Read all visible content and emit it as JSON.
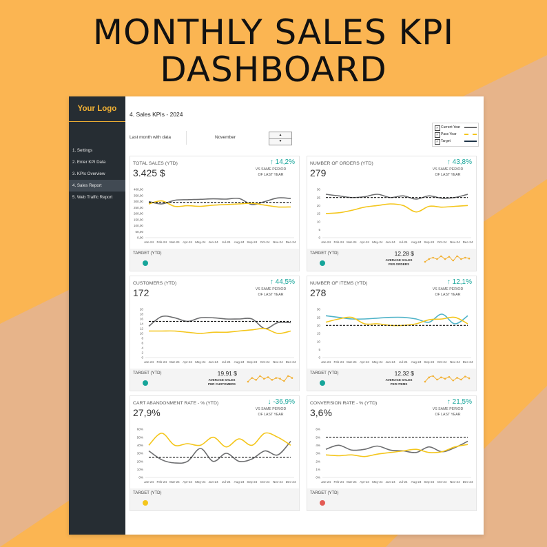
{
  "headline": [
    "MONTHLY SALES KPI",
    "DASHBOARD"
  ],
  "logo": "Your Logo",
  "nav": [
    {
      "label": "1. Settings",
      "active": false
    },
    {
      "label": "2. Enter KPI Data",
      "active": false
    },
    {
      "label": "3. KPIs Overview",
      "active": false
    },
    {
      "label": "4. Sales Report",
      "active": true
    },
    {
      "label": "5. Web Traffic Report",
      "active": false
    }
  ],
  "page_title": "4. Sales KPIs - 2024",
  "last_month_label": "Last month with data",
  "month": "November",
  "spinner": {
    "up": "▲",
    "down": "▼"
  },
  "legend": [
    {
      "label": "Current Year",
      "checked": true,
      "color": "#6d6e70",
      "style": "solid"
    },
    {
      "label": "Pass Year",
      "checked": true,
      "color": "#f4c61c",
      "style": "dashed"
    },
    {
      "label": "Target",
      "checked": true,
      "color": "#1f3549",
      "style": "solid"
    }
  ],
  "colors": {
    "current": "#6d6e70",
    "past": "#f4c61c",
    "target": "#111111",
    "items_current": "#4fb3c8",
    "change_color": "#16a59a",
    "sidebar": "#262d33",
    "background": "#fbb552"
  },
  "months": [
    "Jan-24",
    "Feb-24",
    "Mar-24",
    "Apr-24",
    "May-24",
    "Jun-24",
    "Jul-24",
    "Aug-24",
    "Sep-24",
    "Oct-24",
    "Nov-24",
    "Dec-24"
  ],
  "cards": [
    {
      "title": "TOTAL SALES (YTD)",
      "value": "3.425 $",
      "arrow": "↑",
      "change": "14,2%",
      "cmp": [
        "VS SAME PERIOD",
        "OF LAST YEAR"
      ],
      "target_label": "TARGET (YTD)",
      "dot_color": "#16a59a",
      "avg_value": "",
      "avg_label": [],
      "chart_data": {
        "type": "line",
        "ylim": [
          0,
          400
        ],
        "yticks": [
          "0,00",
          "50,00",
          "100,00",
          "150,00",
          "200,00",
          "250,00",
          "300,00",
          "350,00",
          "400,00"
        ],
        "series": [
          {
            "values": [
              300,
              280,
              310,
              315,
              318,
              322,
              320,
              325,
              275,
              300,
              330,
              325
            ],
            "color": "#6d6e70",
            "width": 1.6
          },
          {
            "values": [
              280,
              305,
              260,
              265,
              260,
              270,
              275,
              280,
              285,
              270,
              255,
              255
            ],
            "color": "#f4c61c",
            "width": 1.6
          },
          {
            "values": [
              292,
              292,
              292,
              292,
              292,
              292,
              292,
              292,
              292,
              292,
              292,
              292
            ],
            "color": "#111111",
            "width": 1.2,
            "dash": "3,2"
          }
        ]
      },
      "sparkline": []
    },
    {
      "title": "NUMBER OF ORDERS (YTD)",
      "value": "279",
      "arrow": "↑",
      "change": "43,8%",
      "cmp": [
        "VS SAME PERIOD",
        "OF LAST YEAR"
      ],
      "target_label": "TARGET (YTD)",
      "dot_color": "#16a59a",
      "avg_value": "12,28 $",
      "avg_label": [
        "AVERAGE SALES",
        "PER ORDERS"
      ],
      "chart_data": {
        "type": "line",
        "ylim": [
          0,
          30
        ],
        "yticks": [
          "0",
          "5",
          "10",
          "15",
          "20",
          "25",
          "30"
        ],
        "series": [
          {
            "values": [
              27,
              26,
              25,
              25.5,
              27,
              25,
              26,
              24,
              26,
              24.5,
              25,
              27
            ],
            "color": "#6d6e70",
            "width": 1.6
          },
          {
            "values": [
              15,
              15.5,
              17,
              19,
              20,
              21,
              20,
              16,
              19.5,
              19,
              19.5,
              20
            ],
            "color": "#f4c61c",
            "width": 1.6
          },
          {
            "values": [
              25,
              25,
              25,
              25,
              25,
              25,
              25,
              25,
              25,
              25,
              25,
              25
            ],
            "color": "#111111",
            "width": 1.2,
            "dash": "3,2"
          }
        ]
      },
      "sparkline": [
        11,
        12,
        12.5,
        12,
        13,
        12,
        12.8,
        11.5,
        13,
        12,
        12.5,
        12.2
      ]
    },
    {
      "title": "CUSTOMERS (YTD)",
      "value": "172",
      "arrow": "↑",
      "change": "44,5%",
      "cmp": [
        "VS SAME PERIOD",
        "OF LAST YEAR"
      ],
      "target_label": "TARGET (YTD)",
      "dot_color": "#16a59a",
      "avg_value": "19,91 $",
      "avg_label": [
        "AVERAGE SALES",
        "PER CUSTOMERS"
      ],
      "chart_data": {
        "type": "line",
        "ylim": [
          0,
          20
        ],
        "yticks": [
          "0",
          "2",
          "4",
          "6",
          "8",
          "10",
          "12",
          "14",
          "16",
          "18",
          "20"
        ],
        "series": [
          {
            "values": [
              13,
              17,
              16.5,
              15,
              16.5,
              16.5,
              16,
              16,
              16,
              12,
              14.5,
              14.5
            ],
            "color": "#6d6e70",
            "width": 1.6
          },
          {
            "values": [
              11,
              11,
              11,
              10.5,
              10,
              10.5,
              10.5,
              11,
              11.5,
              12,
              10,
              11
            ],
            "color": "#f4c61c",
            "width": 1.6
          },
          {
            "values": [
              15,
              15,
              15,
              15,
              15,
              15,
              15,
              15,
              15,
              15,
              15,
              15
            ],
            "color": "#111111",
            "width": 1.2,
            "dash": "3,2"
          }
        ]
      },
      "sparkline": [
        19,
        20,
        19.5,
        20.5,
        19.8,
        20.2,
        19.5,
        20,
        19.8,
        19.2,
        20.5,
        20
      ]
    },
    {
      "title": "NUMBER OF ITEMS (YTD)",
      "value": "278",
      "arrow": "↑",
      "change": "12,1%",
      "cmp": [
        "VS SAME PERIOD",
        "OF LAST YEAR"
      ],
      "target_label": "TARGET (YTD)",
      "dot_color": "#16a59a",
      "avg_value": "12,32 $",
      "avg_label": [
        "AVERAGE SALES",
        "PER ITEMS"
      ],
      "chart_data": {
        "type": "line",
        "ylim": [
          0,
          30
        ],
        "yticks": [
          "0",
          "5",
          "10",
          "15",
          "20",
          "25",
          "30"
        ],
        "series": [
          {
            "values": [
              26,
              25,
              24,
              24,
              24.5,
              25,
              25,
              24,
              22,
              27,
              21,
              26
            ],
            "color": "#4fb3c8",
            "width": 1.6
          },
          {
            "values": [
              22,
              24,
              25,
              21,
              21,
              20,
              20,
              21,
              23.5,
              24,
              25,
              21
            ],
            "color": "#f4c61c",
            "width": 1.6
          },
          {
            "values": [
              20,
              20,
              20,
              20,
              20,
              20,
              20,
              20,
              20,
              20,
              20,
              20
            ],
            "color": "#111111",
            "width": 1.2,
            "dash": "3,2"
          }
        ]
      },
      "sparkline": [
        11.5,
        12.5,
        12.8,
        12,
        12.5,
        12.2,
        12.6,
        11.8,
        12.4,
        12,
        12.7,
        12.3
      ]
    },
    {
      "title": "CART ABANDONMENT RATE - % (YTD)",
      "value": "27,9%",
      "arrow": "↓",
      "change": "-36,9%",
      "cmp": [
        "VS SAME PERIOD",
        "OF LAST YEAR"
      ],
      "target_label": "TARGET (YTD)",
      "dot_color": "#f4c61c",
      "avg_value": "",
      "avg_label": [],
      "chart_data": {
        "type": "line",
        "ylim": [
          0,
          60
        ],
        "yticks": [
          "0%",
          "10%",
          "20%",
          "30%",
          "40%",
          "50%",
          "60%"
        ],
        "series": [
          {
            "values": [
              33,
              22,
              18,
              20,
              36,
              20,
              30,
              20,
              23,
              33,
              28,
              45
            ],
            "color": "#6d6e70",
            "width": 1.6
          },
          {
            "values": [
              40,
              55,
              40,
              42,
              40,
              50,
              38,
              48,
              40,
              55,
              50,
              40
            ],
            "color": "#f4c61c",
            "width": 1.6
          },
          {
            "values": [
              25,
              25,
              25,
              25,
              25,
              25,
              25,
              25,
              25,
              25,
              25,
              25
            ],
            "color": "#111111",
            "width": 1.2,
            "dash": "3,2"
          }
        ]
      },
      "sparkline": []
    },
    {
      "title": "CONVERSION RATE - % (YTD)",
      "value": "3,6%",
      "arrow": "↑",
      "change": "21,5%",
      "cmp": [
        "VS SAME PERIOD",
        "OF LAST YEAR"
      ],
      "target_label": "TARGET (YTD)",
      "dot_color": "#e35b54",
      "avg_value": "",
      "avg_label": [],
      "chart_data": {
        "type": "line",
        "ylim": [
          0,
          6
        ],
        "yticks": [
          "0%",
          "1%",
          "2%",
          "3%",
          "4%",
          "5%",
          "6%"
        ],
        "series": [
          {
            "values": [
              3.5,
              4,
              3.4,
              3.5,
              3.9,
              3.4,
              3.3,
              3.1,
              3.8,
              3.2,
              3.7,
              4.5
            ],
            "color": "#6d6e70",
            "width": 1.6
          },
          {
            "values": [
              2.8,
              2.7,
              2.8,
              2.6,
              2.9,
              3.1,
              3.3,
              3.5,
              3.1,
              3.2,
              3.8,
              4.1
            ],
            "color": "#f4c61c",
            "width": 1.6
          },
          {
            "values": [
              5,
              5,
              5,
              5,
              5,
              5,
              5,
              5,
              5,
              5,
              5,
              5
            ],
            "color": "#111111",
            "width": 1.2,
            "dash": "3,2"
          }
        ]
      },
      "sparkline": []
    }
  ]
}
